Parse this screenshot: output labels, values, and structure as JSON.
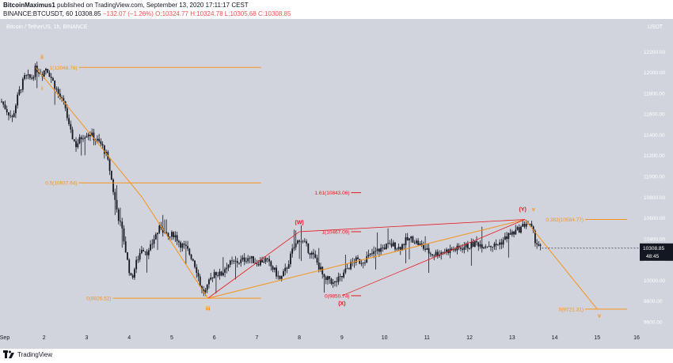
{
  "header": {
    "author": "BitcoinMaximus1",
    "published_text": "published on TradingView.com, September 13, 2020 17:11:17 CEST",
    "symbol_text": "BINANCE:BTCUSDT, 60",
    "price": "10308.85",
    "change": "−132.07 (−1.26%)",
    "ohlc": "O:10324.77 H:10324.78 L:10305.68 C:10308.85"
  },
  "chart_title": "Bitcoin / TetherUS, 1h, BINANCE",
  "footer": {
    "brand": "TradingView"
  },
  "colors": {
    "background": "#d1d4dc",
    "candle": "#131722",
    "fib": "#f7931a",
    "target": "#e8191c",
    "wave_line": "#f7931a",
    "channel_line": "#e8191c",
    "price_tag_bg": "#131722"
  },
  "chart_data": {
    "type": "candlestick",
    "title": "Bitcoin / TetherUS, 1h, BINANCE",
    "y_unit": "USDT",
    "ylim": [
      9500,
      12500
    ],
    "xlim": [
      1.0,
      16.0
    ],
    "y_ticks": [
      "12200.00",
      "12000.00",
      "11800.00",
      "11600.00",
      "11400.00",
      "11200.00",
      "11000.00",
      "10800.00",
      "10600.00",
      "10400.00",
      "10200.00",
      "10000.00",
      "9800.00",
      "9600.00"
    ],
    "x_ticks": [
      {
        "label": "Sep",
        "x": 1.0
      },
      {
        "label": "2",
        "x": 2.0
      },
      {
        "label": "3",
        "x": 3.0
      },
      {
        "label": "4",
        "x": 4.0
      },
      {
        "label": "5",
        "x": 5.0
      },
      {
        "label": "6",
        "x": 6.0
      },
      {
        "label": "7",
        "x": 7.0
      },
      {
        "label": "8",
        "x": 8.0
      },
      {
        "label": "9",
        "x": 9.0
      },
      {
        "label": "10",
        "x": 10.0
      },
      {
        "label": "11",
        "x": 11.0
      },
      {
        "label": "12",
        "x": 12.0
      },
      {
        "label": "13",
        "x": 13.0
      },
      {
        "label": "14",
        "x": 14.0
      },
      {
        "label": "15",
        "x": 15.0
      },
      {
        "label": "16",
        "x": 16.0
      }
    ],
    "last_price": {
      "value": 10308.85,
      "label": "10308.85",
      "countdown": "48:45"
    },
    "price_path": [
      [
        1.0,
        11720
      ],
      [
        1.1,
        11650
      ],
      [
        1.25,
        11560
      ],
      [
        1.4,
        11800
      ],
      [
        1.55,
        11960
      ],
      [
        1.7,
        11940
      ],
      [
        1.8,
        12040
      ],
      [
        1.95,
        11990
      ],
      [
        2.05,
        12050
      ],
      [
        2.2,
        11920
      ],
      [
        2.35,
        11780
      ],
      [
        2.5,
        11660
      ],
      [
        2.6,
        11440
      ],
      [
        2.75,
        11300
      ],
      [
        2.9,
        11390
      ],
      [
        3.05,
        11420
      ],
      [
        3.2,
        11360
      ],
      [
        3.35,
        11300
      ],
      [
        3.45,
        11220
      ],
      [
        3.55,
        11050
      ],
      [
        3.65,
        10800
      ],
      [
        3.75,
        10600
      ],
      [
        3.85,
        10450
      ],
      [
        3.95,
        10200
      ],
      [
        4.05,
        10000
      ],
      [
        4.15,
        10150
      ],
      [
        4.3,
        10320
      ],
      [
        4.45,
        10260
      ],
      [
        4.6,
        10420
      ],
      [
        4.75,
        10520
      ],
      [
        4.9,
        10400
      ],
      [
        5.05,
        10450
      ],
      [
        5.2,
        10350
      ],
      [
        5.35,
        10300
      ],
      [
        5.5,
        10200
      ],
      [
        5.6,
        10080
      ],
      [
        5.7,
        9900
      ],
      [
        5.8,
        9890
      ],
      [
        5.9,
        10000
      ],
      [
        6.0,
        10080
      ],
      [
        6.15,
        10050
      ],
      [
        6.3,
        10150
      ],
      [
        6.45,
        10170
      ],
      [
        6.6,
        10180
      ],
      [
        6.8,
        10220
      ],
      [
        7.0,
        10170
      ],
      [
        7.2,
        10200
      ],
      [
        7.4,
        10100
      ],
      [
        7.55,
        10000
      ],
      [
        7.7,
        10120
      ],
      [
        7.85,
        10300
      ],
      [
        8.0,
        10400
      ],
      [
        8.1,
        10360
      ],
      [
        8.2,
        10300
      ],
      [
        8.35,
        10220
      ],
      [
        8.5,
        10100
      ],
      [
        8.6,
        9980
      ],
      [
        8.7,
        10020
      ],
      [
        8.8,
        9960
      ],
      [
        8.9,
        10000
      ],
      [
        9.0,
        10030
      ],
      [
        9.1,
        10100
      ],
      [
        9.2,
        10150
      ],
      [
        9.3,
        10190
      ],
      [
        9.45,
        10180
      ],
      [
        9.6,
        10220
      ],
      [
        9.75,
        10260
      ],
      [
        9.9,
        10300
      ],
      [
        10.05,
        10330
      ],
      [
        10.2,
        10340
      ],
      [
        10.35,
        10310
      ],
      [
        10.5,
        10380
      ],
      [
        10.65,
        10400
      ],
      [
        10.8,
        10350
      ],
      [
        10.95,
        10300
      ],
      [
        11.1,
        10250
      ],
      [
        11.25,
        10260
      ],
      [
        11.4,
        10280
      ],
      [
        11.55,
        10290
      ],
      [
        11.7,
        10300
      ],
      [
        11.85,
        10320
      ],
      [
        12.0,
        10330
      ],
      [
        12.15,
        10360
      ],
      [
        12.3,
        10340
      ],
      [
        12.45,
        10340
      ],
      [
        12.6,
        10330
      ],
      [
        12.75,
        10370
      ],
      [
        12.9,
        10430
      ],
      [
        13.05,
        10460
      ],
      [
        13.2,
        10500
      ],
      [
        13.35,
        10560
      ],
      [
        13.45,
        10500
      ],
      [
        13.55,
        10380
      ],
      [
        13.65,
        10320
      ],
      [
        13.7,
        10308.85
      ]
    ],
    "series": [
      {
        "name": "Fib (wave i-iii)",
        "kind": "fib",
        "levels": [
          {
            "label": "1(12048.76)",
            "value": 12048.76,
            "x1": 1.7,
            "x2": 7.1
          },
          {
            "label": "0.5(10937.64)",
            "value": 10937.64,
            "x1": 1.7,
            "x2": 7.1
          },
          {
            "label": "0(9826.52)",
            "value": 9826.52,
            "x1": 2.5,
            "x2": 7.1
          }
        ]
      },
      {
        "name": "Fib (W-X)",
        "kind": "target",
        "levels": [
          {
            "label": "1.61(10843.06)",
            "value": 10843.06,
            "x1": 8.1,
            "x2": 9.45
          },
          {
            "label": "1(10467.09)",
            "value": 10467.09,
            "x1": 8.1,
            "x2": 9.45
          },
          {
            "label": "0(9850.74)",
            "value": 9850.74,
            "x1": 8.1,
            "x2": 9.45
          }
        ]
      },
      {
        "name": "Fib (ABC projection)",
        "kind": "fib",
        "levels": [
          {
            "label": "0.382(10584.77)",
            "value": 10584.77,
            "x1": 13.6,
            "x2": 15.7
          },
          {
            "label": "0(9721.31)",
            "value": 9721.31,
            "x1": 13.6,
            "x2": 15.7
          }
        ]
      }
    ],
    "wave_path": [
      [
        1.8,
        12048.76
      ],
      [
        4.3,
        10800
      ],
      [
        5.85,
        9826.52
      ],
      [
        13.3,
        10584.77
      ],
      [
        15.0,
        9721.31
      ]
    ],
    "channel_lines": [
      [
        [
          5.85,
          9826.52
        ],
        [
          8.0,
          10467.09
        ]
      ],
      [
        [
          9.0,
          9850.74
        ],
        [
          13.3,
          10584.77
        ]
      ],
      [
        [
          8.0,
          10467.09
        ],
        [
          13.3,
          10584.77
        ]
      ]
    ],
    "annotations": [
      {
        "text": "ii",
        "x": 1.95,
        "y": 12130,
        "color": "fib"
      },
      {
        "text": "i",
        "x": 1.95,
        "y": 11830,
        "color": "fib"
      },
      {
        "text": "iii",
        "x": 5.85,
        "y": 9710,
        "color": "fib"
      },
      {
        "text": "(W)",
        "x": 8.0,
        "y": 10540,
        "color": "target"
      },
      {
        "text": "(X)",
        "x": 9.0,
        "y": 9760,
        "color": "target"
      },
      {
        "text": "(Y)",
        "x": 13.25,
        "y": 10665,
        "color": "target"
      },
      {
        "text": "v",
        "x": 13.5,
        "y": 10665,
        "color": "fib"
      },
      {
        "text": "v",
        "x": 15.05,
        "y": 9640,
        "color": "fib"
      }
    ]
  }
}
